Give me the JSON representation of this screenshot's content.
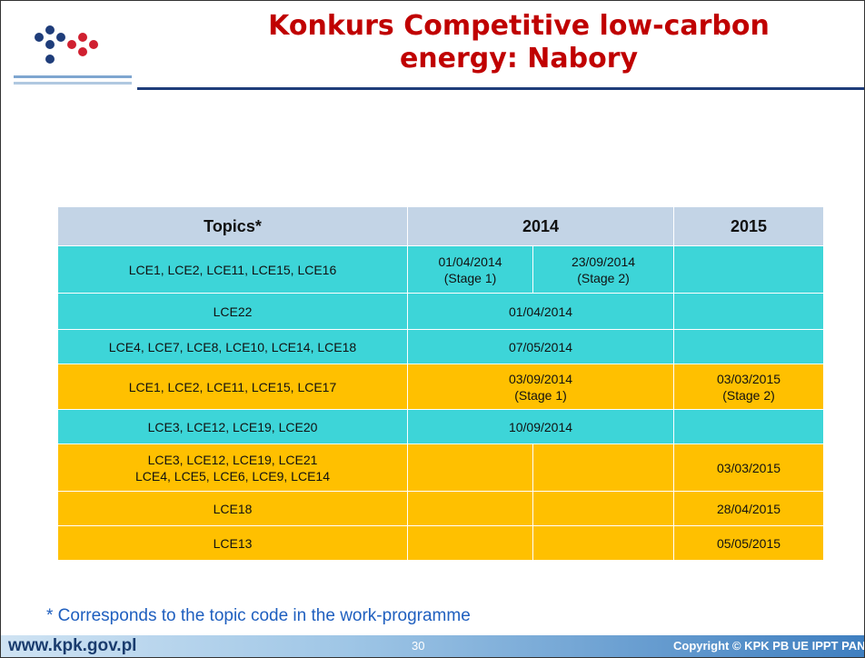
{
  "header": {
    "title_lines": [
      "Konkurs Competitive low-carbon",
      "energy: Nabory"
    ]
  },
  "table": {
    "headers": [
      "Topics*",
      "2014",
      "2015"
    ],
    "rows": [
      {
        "color": "#3dd5d8",
        "topics": [
          "LCE1, LCE2, LCE11, LCE15, LCE16"
        ],
        "y2014": [
          [
            "01/04/2014",
            "(Stage 1)"
          ],
          [
            "23/09/2014",
            "(Stage 2)"
          ]
        ],
        "y2015": []
      },
      {
        "color": "#3dd5d8",
        "topics": [
          "LCE22"
        ],
        "y2014": [
          [
            "01/04/2014"
          ]
        ],
        "y2015": []
      },
      {
        "color": "#3dd5d8",
        "topics": [
          "LCE4, LCE7, LCE8, LCE10, LCE14, LCE18"
        ],
        "y2014": [
          [
            "07/05/2014"
          ]
        ],
        "y2015": []
      },
      {
        "color": "#ffc000",
        "topics": [
          "LCE1, LCE2, LCE11, LCE15, LCE17"
        ],
        "y2014": [
          [
            "03/09/2014",
            "(Stage 1)"
          ]
        ],
        "y2015": [
          "03/03/2015",
          "(Stage 2)"
        ]
      },
      {
        "color": "#3dd5d8",
        "topics": [
          "LCE3, LCE12, LCE19, LCE20"
        ],
        "y2014": [
          [
            "10/09/2014"
          ]
        ],
        "y2015": []
      },
      {
        "color": "#ffc000",
        "topics": [
          "LCE3, LCE12, LCE19, LCE21",
          "LCE4, LCE5, LCE6, LCE9, LCE14"
        ],
        "y2014": [
          [],
          []
        ],
        "y2015": [
          "03/03/2015"
        ]
      },
      {
        "color": "#ffc000",
        "topics": [
          "LCE18"
        ],
        "y2014": [
          [],
          []
        ],
        "y2015": [
          "28/04/2015"
        ]
      },
      {
        "color": "#ffc000",
        "topics": [
          "LCE13"
        ],
        "y2014": [
          [],
          []
        ],
        "y2015": [
          "05/05/2015"
        ]
      }
    ]
  },
  "footnote": "* Corresponds to the topic code in the work-programme",
  "footer": {
    "url": "www.kpk.gov.pl",
    "page": "30",
    "copyright": "Copyright © KPK PB UE IPPT PAN"
  }
}
